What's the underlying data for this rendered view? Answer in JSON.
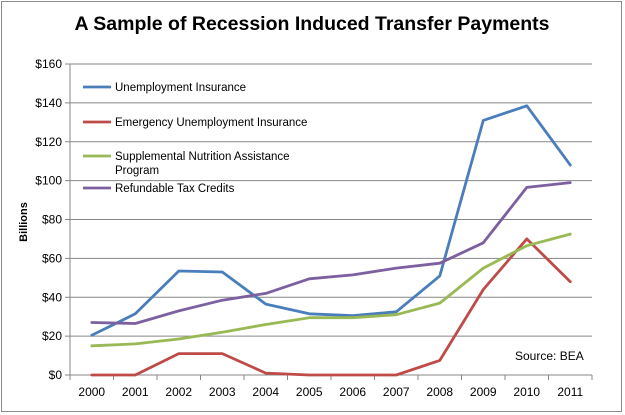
{
  "chart_data": {
    "type": "line",
    "title": "A Sample of Recession Induced Transfer Payments",
    "xlabel": "",
    "ylabel": "Billions",
    "categories": [
      "2000",
      "2001",
      "2002",
      "2003",
      "2004",
      "2005",
      "2006",
      "2007",
      "2008",
      "2009",
      "2010",
      "2011"
    ],
    "ylim": [
      0,
      160
    ],
    "yticks": [
      0,
      20,
      40,
      60,
      80,
      100,
      120,
      140,
      160
    ],
    "ytick_labels": [
      "$0",
      "$20",
      "$40",
      "$60",
      "$80",
      "$100",
      "$120",
      "$140",
      "$160"
    ],
    "grid": true,
    "legend_position": "top-left",
    "series": [
      {
        "name": "Unemployment Insurance",
        "legend_lines": [
          "Unemployment Insurance"
        ],
        "color": "#4a7ebb",
        "values": [
          20.5,
          31.5,
          53.5,
          53,
          36.5,
          31.5,
          30.5,
          32.5,
          51,
          131,
          138.5,
          108
        ]
      },
      {
        "name": "Emergency Unemployment Insurance",
        "legend_lines": [
          "Emergency Unemployment Insurance"
        ],
        "color": "#be4b48",
        "values": [
          0,
          0,
          11,
          11,
          1,
          0,
          0,
          0,
          7.5,
          44,
          70,
          48
        ]
      },
      {
        "name": "Supplemental Nutrition Assistance Program",
        "legend_lines": [
          "Supplemental Nutrition Assistance",
          "Program"
        ],
        "color": "#98b954",
        "values": [
          15,
          16,
          18.5,
          22,
          26,
          29.5,
          29.5,
          31,
          37,
          55,
          66.5,
          72.5
        ]
      },
      {
        "name": "Refundable Tax Credits",
        "legend_lines": [
          "Refundable Tax Credits"
        ],
        "color": "#7d60a0",
        "values": [
          27,
          26.5,
          33,
          38.5,
          42,
          49.5,
          51.5,
          55,
          57.5,
          68,
          96.5,
          99
        ]
      }
    ],
    "annotation": "Source: BEA",
    "colors": {
      "grid": "#878787",
      "axis": "#878787",
      "frame": "#8c8c8c"
    }
  }
}
